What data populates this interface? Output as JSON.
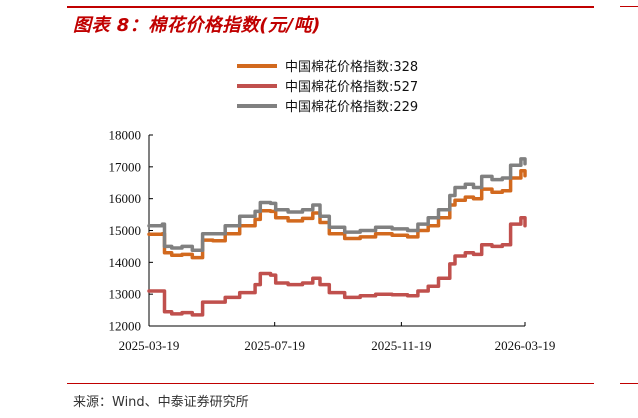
{
  "title": "图表 8：棉花价格指数(元/吨)",
  "source": "来源：Wind、中泰证券研究所",
  "edge_text_top": "",
  "edge_text_bottom": "",
  "chart_data": {
    "type": "line",
    "title": "",
    "xlabel": "",
    "ylabel": "",
    "ylim": [
      12000,
      18000
    ],
    "yticks": [
      "18000",
      "17000",
      "16000",
      "15000",
      "14000",
      "13000",
      "12000"
    ],
    "xticks": [
      "2025-03-19",
      "2025-07-19",
      "2025-11-19",
      "2026-03-19"
    ],
    "grid": false,
    "legend_position": "top-center",
    "series": [
      {
        "name": "中国棉花价格指数:328",
        "color": "#d2691e",
        "values": [
          [
            "2025-03-19",
            14880
          ],
          [
            "2025-04-01",
            14900
          ],
          [
            "2025-04-03",
            14300
          ],
          [
            "2025-04-10",
            14220
          ],
          [
            "2025-04-20",
            14250
          ],
          [
            "2025-04-30",
            14150
          ],
          [
            "2025-05-10",
            14700
          ],
          [
            "2025-05-20",
            14680
          ],
          [
            "2025-06-01",
            14900
          ],
          [
            "2025-06-15",
            15150
          ],
          [
            "2025-06-30",
            15350
          ],
          [
            "2025-07-05",
            15620
          ],
          [
            "2025-07-15",
            15600
          ],
          [
            "2025-07-20",
            15400
          ],
          [
            "2025-08-01",
            15300
          ],
          [
            "2025-08-15",
            15380
          ],
          [
            "2025-08-25",
            15550
          ],
          [
            "2025-09-01",
            15250
          ],
          [
            "2025-09-10",
            14900
          ],
          [
            "2025-09-25",
            14750
          ],
          [
            "2025-10-10",
            14800
          ],
          [
            "2025-10-25",
            14900
          ],
          [
            "2025-11-10",
            14850
          ],
          [
            "2025-11-25",
            14800
          ],
          [
            "2025-12-05",
            15000
          ],
          [
            "2025-12-15",
            15150
          ],
          [
            "2025-12-25",
            15400
          ],
          [
            "2026-01-05",
            15800
          ],
          [
            "2026-01-10",
            15950
          ],
          [
            "2026-01-20",
            16050
          ],
          [
            "2026-01-28",
            16000
          ],
          [
            "2026-02-05",
            16300
          ],
          [
            "2026-02-15",
            16200
          ],
          [
            "2026-02-25",
            16250
          ],
          [
            "2026-03-05",
            16650
          ],
          [
            "2026-03-15",
            16880
          ],
          [
            "2026-03-19",
            16720
          ]
        ]
      },
      {
        "name": "中国棉花价格指数:527",
        "color": "#c0504d",
        "values": [
          [
            "2025-03-19",
            13100
          ],
          [
            "2025-04-01",
            13100
          ],
          [
            "2025-04-03",
            12450
          ],
          [
            "2025-04-10",
            12380
          ],
          [
            "2025-04-20",
            12420
          ],
          [
            "2025-04-30",
            12350
          ],
          [
            "2025-05-10",
            12750
          ],
          [
            "2025-05-20",
            12750
          ],
          [
            "2025-06-01",
            12900
          ],
          [
            "2025-06-15",
            13050
          ],
          [
            "2025-06-30",
            13300
          ],
          [
            "2025-07-05",
            13650
          ],
          [
            "2025-07-15",
            13600
          ],
          [
            "2025-07-20",
            13350
          ],
          [
            "2025-08-01",
            13300
          ],
          [
            "2025-08-15",
            13350
          ],
          [
            "2025-08-25",
            13500
          ],
          [
            "2025-09-01",
            13300
          ],
          [
            "2025-09-10",
            13050
          ],
          [
            "2025-09-25",
            12900
          ],
          [
            "2025-10-10",
            12950
          ],
          [
            "2025-10-25",
            13000
          ],
          [
            "2025-11-10",
            12980
          ],
          [
            "2025-11-25",
            12950
          ],
          [
            "2025-12-05",
            13100
          ],
          [
            "2025-12-15",
            13250
          ],
          [
            "2025-12-25",
            13500
          ],
          [
            "2026-01-05",
            13950
          ],
          [
            "2026-01-10",
            14200
          ],
          [
            "2026-01-20",
            14300
          ],
          [
            "2026-01-28",
            14250
          ],
          [
            "2026-02-05",
            14550
          ],
          [
            "2026-02-15",
            14500
          ],
          [
            "2026-02-25",
            14550
          ],
          [
            "2026-03-05",
            15200
          ],
          [
            "2026-03-15",
            15400
          ],
          [
            "2026-03-19",
            15150
          ]
        ]
      },
      {
        "name": "中国棉花价格指数:229",
        "color": "#808080",
        "values": [
          [
            "2025-03-19",
            15150
          ],
          [
            "2025-04-01",
            15200
          ],
          [
            "2025-04-03",
            14500
          ],
          [
            "2025-04-10",
            14450
          ],
          [
            "2025-04-20",
            14500
          ],
          [
            "2025-04-30",
            14380
          ],
          [
            "2025-05-10",
            14900
          ],
          [
            "2025-05-20",
            14900
          ],
          [
            "2025-06-01",
            15150
          ],
          [
            "2025-06-15",
            15450
          ],
          [
            "2025-06-30",
            15600
          ],
          [
            "2025-07-05",
            15880
          ],
          [
            "2025-07-15",
            15850
          ],
          [
            "2025-07-20",
            15650
          ],
          [
            "2025-08-01",
            15580
          ],
          [
            "2025-08-15",
            15650
          ],
          [
            "2025-08-25",
            15800
          ],
          [
            "2025-09-01",
            15450
          ],
          [
            "2025-09-10",
            15100
          ],
          [
            "2025-09-25",
            14950
          ],
          [
            "2025-10-10",
            15000
          ],
          [
            "2025-10-25",
            15100
          ],
          [
            "2025-11-10",
            15050
          ],
          [
            "2025-11-25",
            15000
          ],
          [
            "2025-12-05",
            15200
          ],
          [
            "2025-12-15",
            15400
          ],
          [
            "2025-12-25",
            15650
          ],
          [
            "2026-01-05",
            16100
          ],
          [
            "2026-01-10",
            16350
          ],
          [
            "2026-01-20",
            16450
          ],
          [
            "2026-01-28",
            16350
          ],
          [
            "2026-02-05",
            16700
          ],
          [
            "2026-02-15",
            16600
          ],
          [
            "2026-02-25",
            16650
          ],
          [
            "2026-03-05",
            17050
          ],
          [
            "2026-03-15",
            17250
          ],
          [
            "2026-03-19",
            17100
          ]
        ]
      }
    ]
  }
}
